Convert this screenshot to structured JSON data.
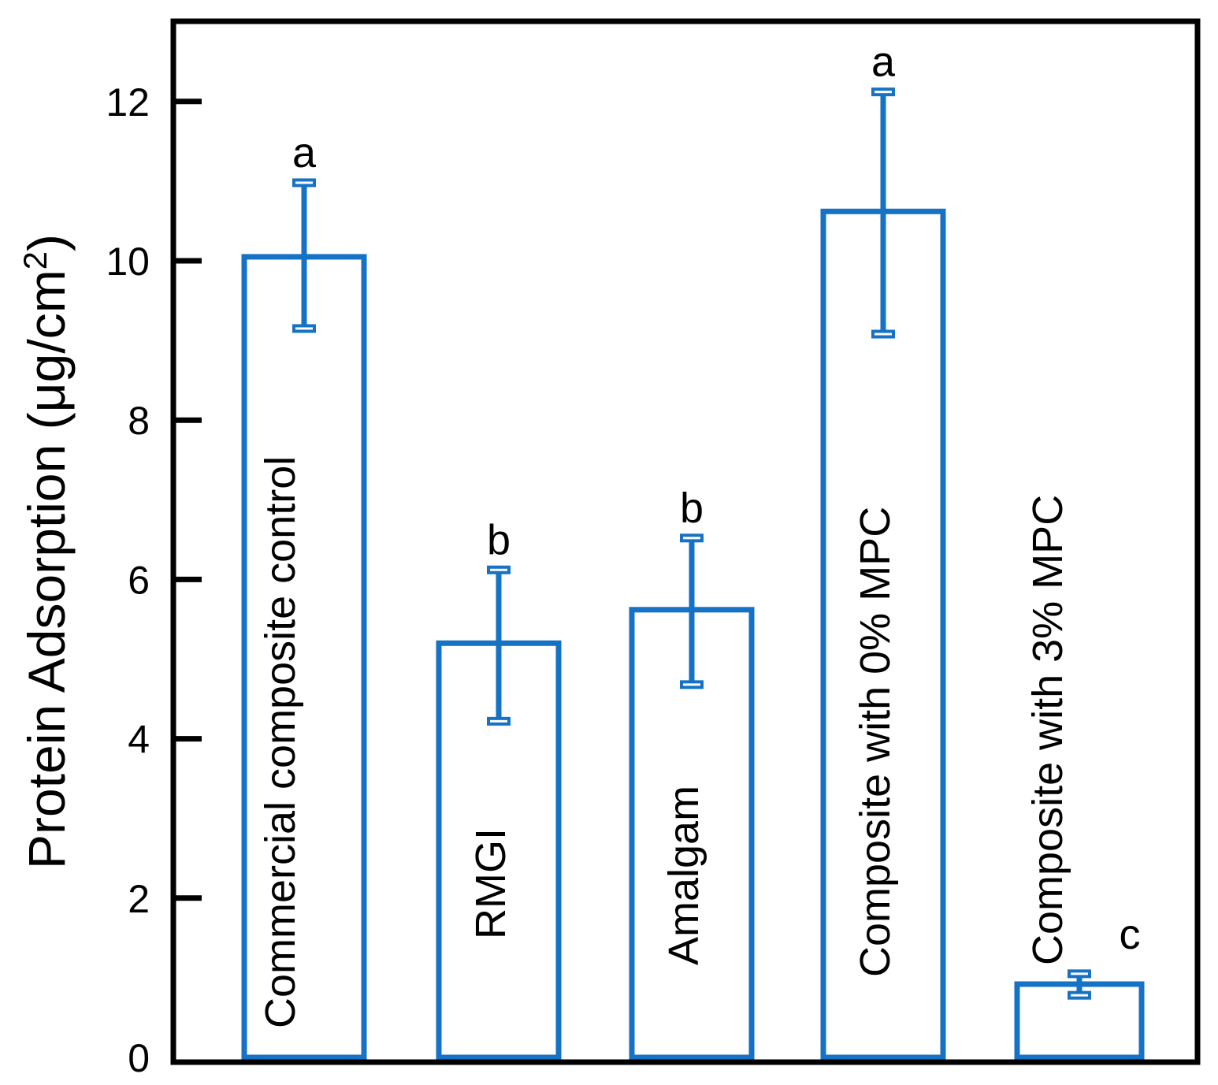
{
  "chart_data": {
    "type": "bar",
    "title": "",
    "xlabel": "",
    "ylabel": "Protein Adsorption (μg/cm",
    "ylabel_superscript": "2",
    "ylabel_close": ")",
    "ylim": [
      0,
      13
    ],
    "yticks": [
      0,
      2,
      4,
      6,
      8,
      10,
      12
    ],
    "ytick_labels": [
      "0",
      "2",
      "4",
      "6",
      "8",
      "10",
      "12"
    ],
    "grid": false,
    "bar_color": "#1572c4",
    "categories": [
      "Commercial composite control",
      "RMGI",
      "Amalgam",
      "Composite  with 0% MPC",
      "Composite with 3% MPC"
    ],
    "values": [
      10.05,
      5.2,
      5.62,
      10.62,
      0.92
    ],
    "error_low": [
      9.15,
      4.22,
      4.68,
      9.08,
      0.78
    ],
    "error_high": [
      10.98,
      6.12,
      6.52,
      12.12,
      1.05
    ],
    "significance": [
      "a",
      "b",
      "b",
      "a",
      "c"
    ]
  }
}
